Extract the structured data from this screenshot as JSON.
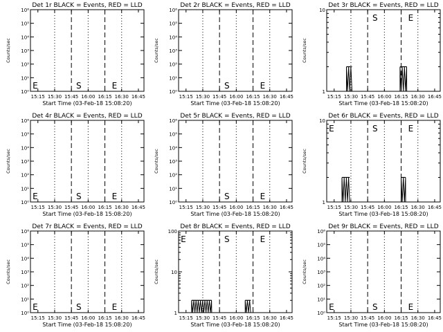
{
  "chart_data": [
    {
      "type": "line",
      "title": "Det 1r BLACK = Events, RED = LLD",
      "xlabel": "Start Time (03-Feb-18 15:08:20)",
      "ylabel": "Counts/sec",
      "ylog": true,
      "ylim": [
        1,
        1000000.0
      ],
      "ytick_labels": [
        "10⁰",
        "10¹",
        "10²",
        "10³",
        "10⁴",
        "10⁵",
        "10⁶"
      ],
      "xtick_labels": [
        "15:15",
        "15:30",
        "15:45",
        "16:00",
        "16:15",
        "16:30",
        "16:45"
      ],
      "markers": [
        {
          "label": "E",
          "x": "15:09"
        },
        {
          "label": "S",
          "x": "15:48"
        },
        {
          "label": "E",
          "x": "16:20"
        }
      ],
      "series": []
    },
    {
      "type": "line",
      "title": "Det 2r BLACK = Events, RED = LLD",
      "xlabel": "Start Time (03-Feb-18 15:08:20)",
      "ylabel": "Counts/sec",
      "ylog": true,
      "ylim": [
        1,
        1000000.0
      ],
      "ytick_labels": [
        "10⁰",
        "10¹",
        "10²",
        "10³",
        "10⁴",
        "10⁵",
        "10⁶"
      ],
      "xtick_labels": [
        "15:15",
        "15:30",
        "15:45",
        "16:00",
        "16:15",
        "16:30",
        "16:45"
      ],
      "markers": [
        {
          "label": "S",
          "x": "15:48"
        },
        {
          "label": "E",
          "x": "16:20"
        }
      ],
      "series": []
    },
    {
      "type": "line",
      "title": "Det 3r BLACK = Events, RED = LLD",
      "xlabel": "Start Time (03-Feb-18 15:08:20)",
      "ylabel": "Counts/sec",
      "ylog": true,
      "ylim": [
        1,
        10
      ],
      "ytick_labels": [
        "1",
        "10"
      ],
      "xtick_labels": [
        "15:15",
        "15:30",
        "15:45",
        "16:00",
        "16:15",
        "16:30",
        "16:45"
      ],
      "markers": [
        {
          "label": "S",
          "x": "15:48"
        },
        {
          "label": "E",
          "x": "16:20"
        }
      ],
      "series": [
        {
          "segments": [
            [
              "15:26",
              "15:31"
            ],
            [
              "16:14",
              "16:20"
            ]
          ],
          "value": 2
        }
      ]
    },
    {
      "type": "line",
      "title": "Det 4r BLACK = Events, RED = LLD",
      "xlabel": "Start Time (03-Feb-18 15:08:20)",
      "ylabel": "Counts/sec",
      "ylog": true,
      "ylim": [
        1,
        1000000.0
      ],
      "ytick_labels": [
        "10⁰",
        "10¹",
        "10²",
        "10³",
        "10⁴",
        "10⁵",
        "10⁶"
      ],
      "xtick_labels": [
        "15:15",
        "15:30",
        "15:45",
        "16:00",
        "16:15",
        "16:30",
        "16:45"
      ],
      "markers": [
        {
          "label": "E",
          "x": "15:09"
        },
        {
          "label": "S",
          "x": "15:48"
        },
        {
          "label": "E",
          "x": "16:20"
        }
      ],
      "series": []
    },
    {
      "type": "line",
      "title": "Det 5r BLACK = Events, RED = LLD",
      "xlabel": "Start Time (03-Feb-18 15:08:20)",
      "ylabel": "Counts/sec",
      "ylog": true,
      "ylim": [
        1,
        1000000.0
      ],
      "ytick_labels": [
        "10⁰",
        "10¹",
        "10²",
        "10³",
        "10⁴",
        "10⁵",
        "10⁶"
      ],
      "xtick_labels": [
        "15:15",
        "15:30",
        "15:45",
        "16:00",
        "16:15",
        "16:30",
        "16:45"
      ],
      "markers": [
        {
          "label": "S",
          "x": "15:48"
        },
        {
          "label": "E",
          "x": "16:20"
        }
      ],
      "series": []
    },
    {
      "type": "line",
      "title": "Det 6r BLACK = Events, RED = LLD",
      "xlabel": "Start Time (03-Feb-18 15:08:20)",
      "ylabel": "Counts/sec",
      "ylog": true,
      "ylim": [
        1,
        10
      ],
      "ytick_labels": [
        "1",
        "10"
      ],
      "xtick_labels": [
        "15:15",
        "15:30",
        "15:45",
        "16:00",
        "16:15",
        "16:30",
        "16:45"
      ],
      "markers": [
        {
          "label": "E",
          "x": "15:09"
        },
        {
          "label": "S",
          "x": "15:48"
        },
        {
          "label": "E",
          "x": "16:20"
        }
      ],
      "series": [
        {
          "segments": [
            [
              "15:22",
              "15:29"
            ],
            [
              "16:15",
              "16:19"
            ]
          ],
          "value": 2
        }
      ]
    },
    {
      "type": "line",
      "title": "Det 7r BLACK = Events, RED = LLD",
      "xlabel": "Start Time (03-Feb-18 15:08:20)",
      "ylabel": "Counts/sec",
      "ylog": true,
      "ylim": [
        1,
        1000000.0
      ],
      "ytick_labels": [
        "10⁰",
        "10¹",
        "10²",
        "10³",
        "10⁴",
        "10⁵",
        "10⁶"
      ],
      "xtick_labels": [
        "15:15",
        "15:30",
        "15:45",
        "16:00",
        "16:15",
        "16:30",
        "16:45"
      ],
      "markers": [
        {
          "label": "E",
          "x": "15:09"
        },
        {
          "label": "S",
          "x": "15:48"
        },
        {
          "label": "E",
          "x": "16:20"
        }
      ],
      "series": []
    },
    {
      "type": "line",
      "title": "Det 8r BLACK = Events, RED = LLD",
      "xlabel": "Start Time (03-Feb-18 15:08:20)",
      "ylabel": "Counts/sec",
      "ylog": true,
      "ylim": [
        1,
        100
      ],
      "ytick_labels": [
        "1",
        "10",
        "100"
      ],
      "xtick_labels": [
        "15:15",
        "15:30",
        "15:45",
        "16:00",
        "16:15",
        "16:30",
        "16:45"
      ],
      "markers": [
        {
          "label": "E",
          "x": "15:09"
        },
        {
          "label": "S",
          "x": "15:48"
        },
        {
          "label": "E",
          "x": "16:20"
        }
      ],
      "series": [
        {
          "segments": [
            [
              "15:20",
              "15:38"
            ],
            [
              "16:08",
              "16:13"
            ]
          ],
          "value": 2
        }
      ]
    },
    {
      "type": "line",
      "title": "Det 9r BLACK = Events, RED = LLD",
      "xlabel": "Start Time (03-Feb-18 15:08:20)",
      "ylabel": "Counts/sec",
      "ylog": true,
      "ylim": [
        1,
        1000000.0
      ],
      "ytick_labels": [
        "10⁰",
        "10¹",
        "10²",
        "10³",
        "10⁴",
        "10⁵",
        "10⁶"
      ],
      "xtick_labels": [
        "15:15",
        "15:30",
        "15:45",
        "16:00",
        "16:15",
        "16:30",
        "16:45"
      ],
      "markers": [
        {
          "label": "E",
          "x": "15:09"
        },
        {
          "label": "S",
          "x": "15:48"
        },
        {
          "label": "E",
          "x": "16:20"
        }
      ],
      "series": []
    }
  ]
}
